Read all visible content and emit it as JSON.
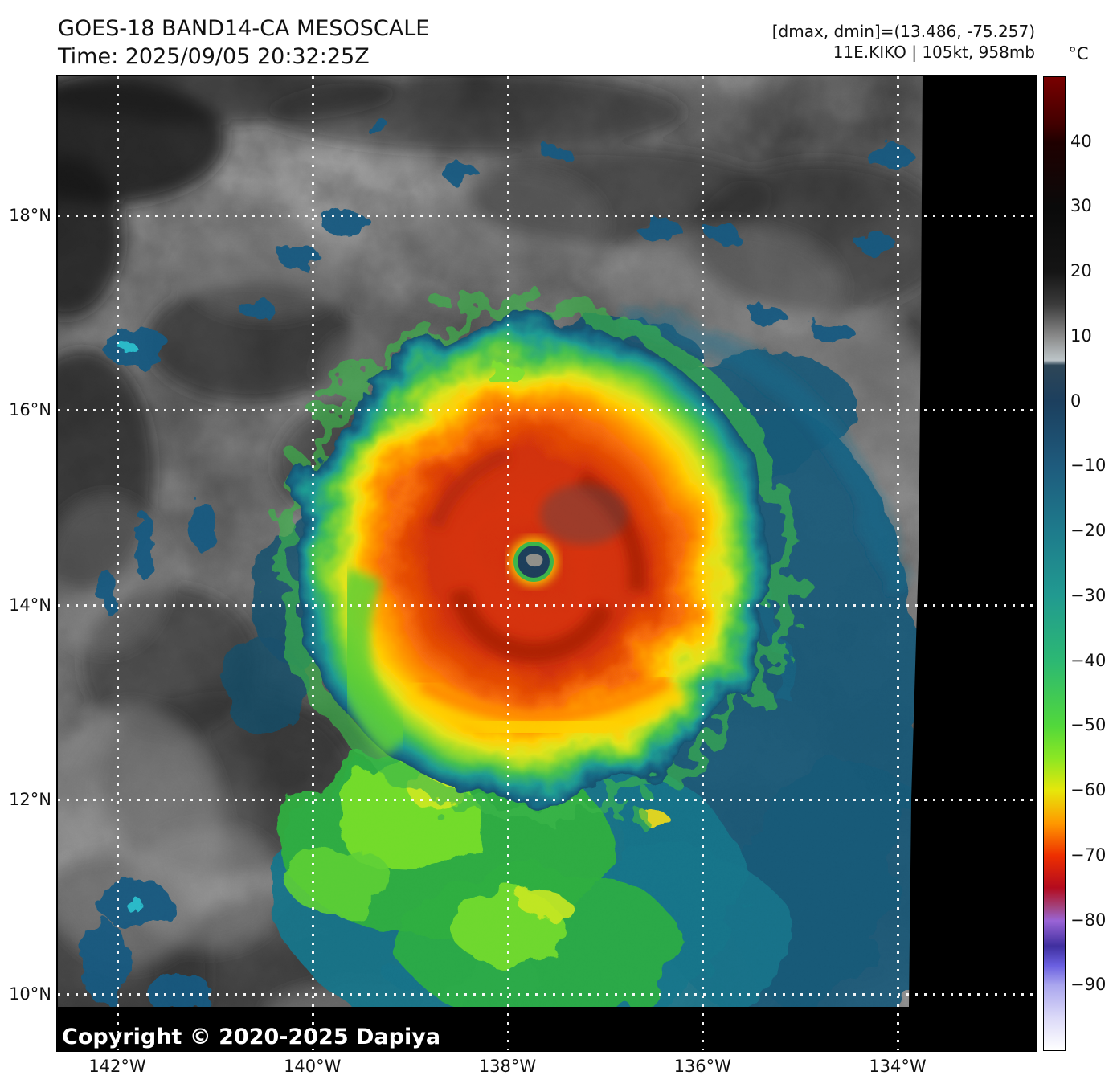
{
  "title": {
    "line1": "GOES-18 BAND14-CA MESOSCALE",
    "line2": "Time: 2025/09/05 20:32:25Z"
  },
  "annotations": {
    "range_line": "[dmax, dmin]=(13.486, -75.257)",
    "storm_line": "11E.KIKO | 105kt, 958mb"
  },
  "copyright": "Copyright © 2020-2025 Dapiya",
  "colorbar": {
    "unit": "°C",
    "domain_max": 50,
    "domain_min": -100,
    "ticks": [
      {
        "value": 40,
        "label": "40"
      },
      {
        "value": 30,
        "label": "30"
      },
      {
        "value": 20,
        "label": "20"
      },
      {
        "value": 10,
        "label": "10"
      },
      {
        "value": 0,
        "label": "0"
      },
      {
        "value": -10,
        "label": "−10"
      },
      {
        "value": -20,
        "label": "−20"
      },
      {
        "value": -30,
        "label": "−30"
      },
      {
        "value": -40,
        "label": "−40"
      },
      {
        "value": -50,
        "label": "−50"
      },
      {
        "value": -60,
        "label": "−60"
      },
      {
        "value": -70,
        "label": "−70"
      },
      {
        "value": -80,
        "label": "−80"
      },
      {
        "value": -90,
        "label": "−90"
      }
    ],
    "stops": [
      [
        0.0,
        "#780000"
      ],
      [
        0.048,
        "#420000"
      ],
      [
        0.067,
        "#1f0000"
      ],
      [
        0.133,
        "#0a0a0a"
      ],
      [
        0.2,
        "#151515"
      ],
      [
        0.233,
        "#3a3a3a"
      ],
      [
        0.267,
        "#8b8b8b"
      ],
      [
        0.283,
        "#adb3b5"
      ],
      [
        0.291,
        "#bcc4c8"
      ],
      [
        0.296,
        "#2e4657"
      ],
      [
        0.333,
        "#1c3f5e"
      ],
      [
        0.4,
        "#1e5b7d"
      ],
      [
        0.467,
        "#1e7b8c"
      ],
      [
        0.533,
        "#219a90"
      ],
      [
        0.6,
        "#2cb873"
      ],
      [
        0.667,
        "#52d83b"
      ],
      [
        0.7,
        "#8ce723"
      ],
      [
        0.733,
        "#e6e70b"
      ],
      [
        0.767,
        "#ff9800"
      ],
      [
        0.8,
        "#ee2f00"
      ],
      [
        0.833,
        "#b40b1e"
      ],
      [
        0.853,
        "#a2447f"
      ],
      [
        0.867,
        "#9a64d6"
      ],
      [
        0.893,
        "#3f2f9f"
      ],
      [
        0.913,
        "#6a5fe0"
      ],
      [
        0.933,
        "#aaa6ee"
      ],
      [
        0.967,
        "#dcdaf8"
      ],
      [
        1.0,
        "#ffffff"
      ]
    ]
  },
  "axes": {
    "lat_ticks": [
      {
        "value": 18,
        "label": "18°N"
      },
      {
        "value": 16,
        "label": "16°N"
      },
      {
        "value": 14,
        "label": "14°N"
      },
      {
        "value": 12,
        "label": "12°N"
      },
      {
        "value": 10,
        "label": "10°N"
      }
    ],
    "lon_ticks": [
      {
        "value": 142,
        "label": "142°W"
      },
      {
        "value": 140,
        "label": "140°W"
      },
      {
        "value": 138,
        "label": "138°W"
      },
      {
        "value": 136,
        "label": "136°W"
      },
      {
        "value": 134,
        "label": "134°W"
      }
    ]
  }
}
